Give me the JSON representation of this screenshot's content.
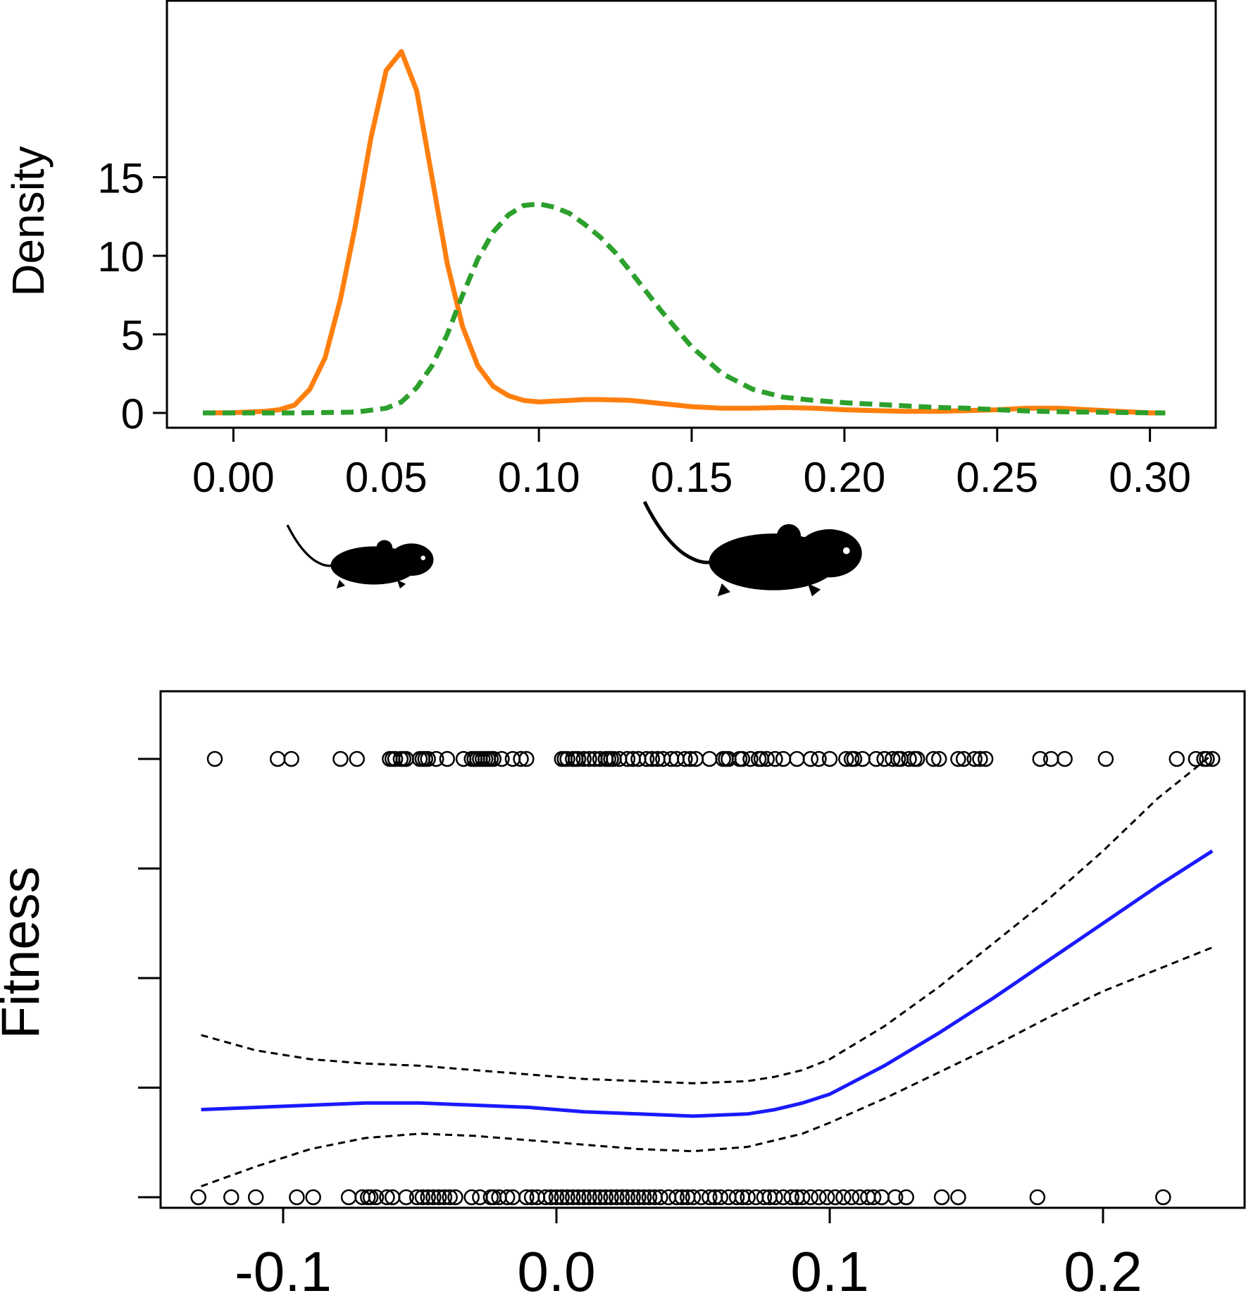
{
  "colors": {
    "orange_series": "#ff7f0e",
    "green_series": "#2ca02c",
    "fit_line": "#1a1aff",
    "ci_lines": "#000000",
    "points": "#000000",
    "mouse_icon": "#000000"
  },
  "icons": [
    "small-mouse-icon",
    "large-mouse-icon"
  ],
  "chart_data": [
    {
      "type": "line",
      "title": "",
      "xlabel": "",
      "ylabel": "Density",
      "xlim": [
        -0.01,
        0.31
      ],
      "ylim": [
        0,
        23
      ],
      "x_ticks": [
        0.0,
        0.05,
        0.1,
        0.15,
        0.2,
        0.25,
        0.3
      ],
      "x_tick_labels": [
        "0.00",
        "0.05",
        "0.10",
        "0.15",
        "0.20",
        "0.25",
        "0.30"
      ],
      "y_ticks": [
        0,
        5,
        10,
        15
      ],
      "y_tick_labels": [
        "0",
        "5",
        "10",
        "15"
      ],
      "grid": false,
      "series": [
        {
          "style": "solid",
          "color": "#ff7f0e",
          "x": [
            -0.01,
            0.0,
            0.01,
            0.015,
            0.02,
            0.025,
            0.03,
            0.035,
            0.04,
            0.045,
            0.05,
            0.055,
            0.06,
            0.065,
            0.07,
            0.075,
            0.08,
            0.085,
            0.09,
            0.095,
            0.1,
            0.105,
            0.11,
            0.115,
            0.12,
            0.13,
            0.14,
            0.15,
            0.16,
            0.17,
            0.18,
            0.19,
            0.2,
            0.21,
            0.22,
            0.23,
            0.24,
            0.25,
            0.26,
            0.27,
            0.28,
            0.29,
            0.3,
            0.305
          ],
          "y": [
            0.0,
            0.02,
            0.1,
            0.2,
            0.5,
            1.5,
            3.5,
            7.2,
            12.0,
            17.5,
            21.8,
            23.0,
            20.5,
            15.0,
            9.5,
            5.5,
            3.0,
            1.7,
            1.1,
            0.8,
            0.7,
            0.75,
            0.8,
            0.85,
            0.85,
            0.8,
            0.6,
            0.4,
            0.3,
            0.3,
            0.35,
            0.3,
            0.2,
            0.15,
            0.1,
            0.1,
            0.15,
            0.2,
            0.3,
            0.3,
            0.2,
            0.1,
            0.0,
            0.0
          ]
        },
        {
          "style": "dashed",
          "color": "#2ca02c",
          "x": [
            -0.01,
            0.0,
            0.02,
            0.04,
            0.05,
            0.055,
            0.06,
            0.065,
            0.07,
            0.075,
            0.08,
            0.085,
            0.09,
            0.095,
            0.1,
            0.105,
            0.11,
            0.115,
            0.12,
            0.125,
            0.13,
            0.14,
            0.15,
            0.16,
            0.17,
            0.18,
            0.19,
            0.2,
            0.21,
            0.22,
            0.23,
            0.24,
            0.25,
            0.26,
            0.27,
            0.28,
            0.29,
            0.3,
            0.305
          ],
          "y": [
            0.0,
            0.0,
            0.0,
            0.05,
            0.3,
            0.7,
            1.6,
            3.0,
            5.0,
            7.5,
            9.8,
            11.5,
            12.6,
            13.2,
            13.3,
            13.1,
            12.7,
            12.0,
            11.2,
            10.2,
            9.0,
            6.5,
            4.2,
            2.5,
            1.5,
            1.0,
            0.8,
            0.65,
            0.55,
            0.45,
            0.35,
            0.3,
            0.2,
            0.12,
            0.08,
            0.05,
            0.03,
            0.01,
            0.0
          ]
        }
      ]
    },
    {
      "type": "scatter",
      "title": "",
      "xlabel": "",
      "ylabel": "Fitness",
      "xlim": [
        -0.145,
        0.245
      ],
      "ylim": [
        -0.05,
        1.05
      ],
      "x_ticks": [
        -0.1,
        0.0,
        0.1,
        0.2
      ],
      "x_tick_labels": [
        "-0.1",
        "0.0",
        "0.1",
        "0.2"
      ],
      "y_ticks": [
        0.0,
        0.25,
        0.5,
        0.75,
        1.0
      ],
      "y_tick_labels": [
        "",
        "",
        "",
        "",
        ""
      ],
      "grid": false,
      "points_y1_x": [
        -0.125,
        -0.102,
        -0.097,
        -0.079,
        -0.073,
        -0.061,
        -0.06,
        -0.059,
        -0.057,
        -0.056,
        -0.055,
        -0.05,
        -0.049,
        -0.048,
        -0.047,
        -0.044,
        -0.04,
        -0.034,
        -0.031,
        -0.03,
        -0.03,
        -0.029,
        -0.028,
        -0.027,
        -0.026,
        -0.025,
        -0.024,
        -0.023,
        -0.02,
        -0.016,
        -0.013,
        -0.011,
        0.002,
        0.003,
        0.004,
        0.006,
        0.007,
        0.008,
        0.01,
        0.012,
        0.014,
        0.016,
        0.018,
        0.019,
        0.02,
        0.021,
        0.023,
        0.026,
        0.028,
        0.03,
        0.033,
        0.035,
        0.037,
        0.039,
        0.042,
        0.044,
        0.047,
        0.049,
        0.051,
        0.056,
        0.061,
        0.062,
        0.063,
        0.067,
        0.068,
        0.071,
        0.074,
        0.075,
        0.077,
        0.08,
        0.083,
        0.088,
        0.093,
        0.096,
        0.1,
        0.106,
        0.108,
        0.109,
        0.112,
        0.117,
        0.12,
        0.123,
        0.125,
        0.126,
        0.129,
        0.131,
        0.132,
        0.138,
        0.14,
        0.147,
        0.149,
        0.153,
        0.155,
        0.157,
        0.177,
        0.181,
        0.186,
        0.201,
        0.227,
        0.234,
        0.237,
        0.238,
        0.24
      ],
      "points_y0_x": [
        -0.131,
        -0.119,
        -0.11,
        -0.095,
        -0.089,
        -0.076,
        -0.071,
        -0.069,
        -0.068,
        -0.066,
        -0.062,
        -0.06,
        -0.055,
        -0.051,
        -0.049,
        -0.047,
        -0.045,
        -0.043,
        -0.041,
        -0.039,
        -0.037,
        -0.031,
        -0.028,
        -0.024,
        -0.023,
        -0.021,
        -0.018,
        -0.016,
        -0.011,
        -0.009,
        -0.007,
        -0.004,
        -0.002,
        0.0,
        0.002,
        0.004,
        0.006,
        0.008,
        0.01,
        0.012,
        0.014,
        0.016,
        0.018,
        0.02,
        0.022,
        0.024,
        0.026,
        0.028,
        0.03,
        0.032,
        0.034,
        0.036,
        0.038,
        0.041,
        0.044,
        0.046,
        0.048,
        0.05,
        0.053,
        0.056,
        0.058,
        0.06,
        0.063,
        0.066,
        0.068,
        0.07,
        0.073,
        0.076,
        0.078,
        0.08,
        0.083,
        0.086,
        0.088,
        0.09,
        0.093,
        0.096,
        0.099,
        0.102,
        0.105,
        0.108,
        0.111,
        0.114,
        0.116,
        0.119,
        0.124,
        0.128,
        0.141,
        0.147,
        0.176,
        0.222
      ],
      "fit": {
        "color": "#1a1aff",
        "x": [
          -0.13,
          -0.11,
          -0.09,
          -0.07,
          -0.05,
          -0.03,
          -0.01,
          0.01,
          0.03,
          0.05,
          0.07,
          0.08,
          0.09,
          0.1,
          0.12,
          0.14,
          0.16,
          0.18,
          0.2,
          0.22,
          0.24
        ],
        "y": [
          0.2,
          0.205,
          0.21,
          0.215,
          0.215,
          0.21,
          0.205,
          0.195,
          0.19,
          0.185,
          0.19,
          0.2,
          0.215,
          0.235,
          0.3,
          0.375,
          0.455,
          0.54,
          0.625,
          0.71,
          0.79
        ]
      },
      "ci_upper": {
        "x": [
          -0.13,
          -0.11,
          -0.09,
          -0.07,
          -0.05,
          -0.03,
          -0.01,
          0.01,
          0.03,
          0.05,
          0.07,
          0.08,
          0.09,
          0.1,
          0.12,
          0.14,
          0.16,
          0.18,
          0.2,
          0.22,
          0.24
        ],
        "y": [
          0.37,
          0.335,
          0.315,
          0.305,
          0.3,
          0.29,
          0.28,
          0.27,
          0.265,
          0.26,
          0.265,
          0.275,
          0.29,
          0.315,
          0.39,
          0.48,
          0.58,
          0.68,
          0.79,
          0.91,
          1.01
        ]
      },
      "ci_lower": {
        "x": [
          -0.13,
          -0.11,
          -0.09,
          -0.07,
          -0.05,
          -0.03,
          -0.01,
          0.01,
          0.03,
          0.05,
          0.07,
          0.08,
          0.09,
          0.1,
          0.12,
          0.14,
          0.16,
          0.18,
          0.2,
          0.22,
          0.24
        ],
        "y": [
          0.025,
          0.07,
          0.11,
          0.135,
          0.145,
          0.14,
          0.13,
          0.12,
          0.11,
          0.105,
          0.115,
          0.13,
          0.145,
          0.17,
          0.225,
          0.285,
          0.345,
          0.41,
          0.47,
          0.52,
          0.57
        ]
      }
    }
  ]
}
